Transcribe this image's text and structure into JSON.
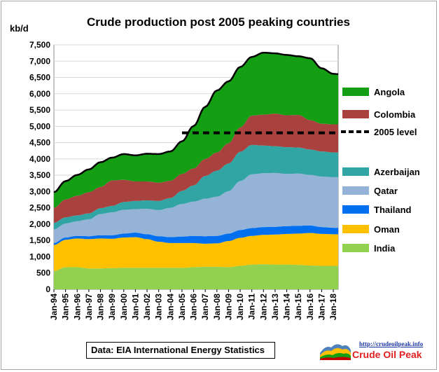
{
  "chart_data": {
    "type": "area",
    "stacked": true,
    "title": "Crude  production post 2005 peaking countries",
    "ylabel": "kb/d",
    "ylim": [
      0,
      7500
    ],
    "y_ticks": [
      "0",
      "500",
      "1,000",
      "1,500",
      "2,000",
      "2,500",
      "3,000",
      "3,500",
      "4,000",
      "4,500",
      "5,000",
      "5,500",
      "6,000",
      "6,500",
      "7,000",
      "7,500"
    ],
    "x_ticks": [
      "Jan-94",
      "Jan-95",
      "Jan-96",
      "Jan-97",
      "Jan-98",
      "Jan-99",
      "Jan-00",
      "Jan-01",
      "Jan-02",
      "Jan-03",
      "Jan-04",
      "Jan-05",
      "Jan-06",
      "Jan-07",
      "Jan-08",
      "Jan-09",
      "Jan-10",
      "Jan-11",
      "Jan-12",
      "Jan-13",
      "Jan-14",
      "Jan-15",
      "Jan-16",
      "Jan-17",
      "Jan-18"
    ],
    "x": [
      "1994",
      "1995",
      "1996",
      "1997",
      "1998",
      "1999",
      "2000",
      "2001",
      "2002",
      "2003",
      "2004",
      "2005",
      "2006",
      "2007",
      "2008",
      "2009",
      "2010",
      "2011",
      "2012",
      "2013",
      "2014",
      "2015",
      "2016",
      "2017",
      "2018",
      "2018-06"
    ],
    "grid": true,
    "legend_position": "right",
    "series": [
      {
        "name": "India",
        "color": "#92d050",
        "values": [
          560,
          680,
          680,
          640,
          640,
          650,
          660,
          660,
          660,
          660,
          660,
          660,
          680,
          690,
          690,
          680,
          720,
          760,
          770,
          760,
          760,
          750,
          730,
          720,
          720,
          720
        ]
      },
      {
        "name": "Oman",
        "color": "#ffc000",
        "values": [
          800,
          840,
          880,
          900,
          920,
          900,
          930,
          940,
          880,
          800,
          760,
          760,
          740,
          710,
          720,
          800,
          860,
          880,
          900,
          920,
          940,
          960,
          1000,
          980,
          970,
          970
        ]
      },
      {
        "name": "Thailand",
        "color": "#0070f0",
        "values": [
          60,
          70,
          80,
          90,
          100,
          110,
          120,
          140,
          150,
          170,
          180,
          200,
          220,
          230,
          230,
          230,
          240,
          240,
          240,
          240,
          240,
          240,
          230,
          210,
          200,
          200
        ]
      },
      {
        "name": "Qatar",
        "color": "#95b3d7",
        "values": [
          420,
          430,
          450,
          520,
          650,
          700,
          730,
          720,
          780,
          800,
          900,
          1000,
          1050,
          1150,
          1200,
          1300,
          1500,
          1650,
          1650,
          1650,
          1600,
          1600,
          1550,
          1550,
          1550,
          1550
        ]
      },
      {
        "name": "Azerbaijan",
        "color": "#31a4a4",
        "values": [
          200,
          190,
          180,
          180,
          180,
          200,
          240,
          250,
          260,
          280,
          300,
          400,
          500,
          700,
          800,
          850,
          900,
          900,
          850,
          820,
          820,
          800,
          780,
          770,
          760,
          760
        ]
      },
      {
        "name": "Colombia",
        "color": "#a9423e",
        "values": [
          460,
          550,
          600,
          650,
          650,
          780,
          680,
          600,
          580,
          560,
          530,
          520,
          520,
          520,
          560,
          620,
          750,
          900,
          950,
          1000,
          980,
          1000,
          900,
          850,
          860,
          860
        ]
      },
      {
        "name": "Angola",
        "color": "#149e14",
        "values": [
          480,
          560,
          640,
          700,
          760,
          700,
          790,
          800,
          850,
          880,
          900,
          1000,
          1300,
          1600,
          1900,
          1900,
          1850,
          1800,
          1900,
          1850,
          1850,
          1800,
          1900,
          1700,
          1550,
          1540
        ]
      }
    ],
    "reference_line": {
      "name": "2005 level",
      "value": 4800,
      "from": "2005",
      "to": "2018-06"
    }
  },
  "footer": {
    "source_text": "Data: EIA International Energy Statistics",
    "logo_url_text": "http://crudeoilpeak.info",
    "logo_name": "Crude Oil Peak"
  }
}
